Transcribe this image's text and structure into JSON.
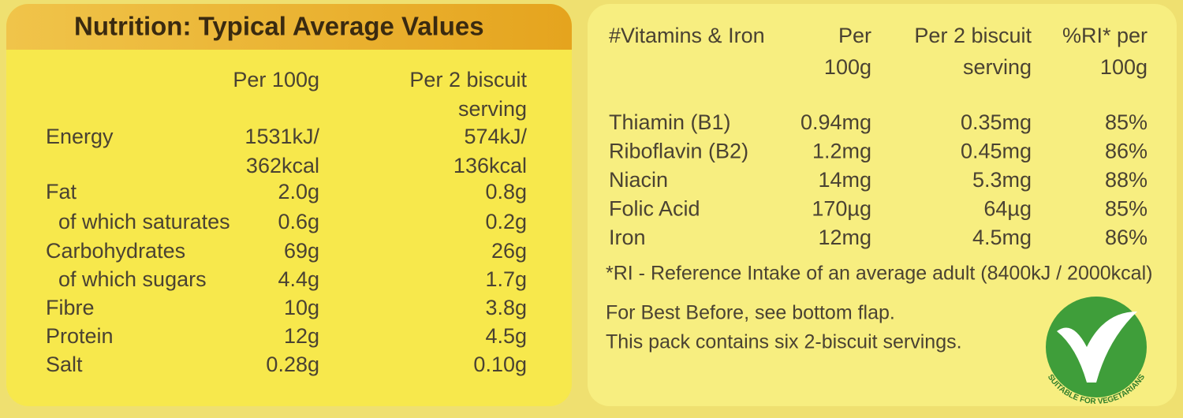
{
  "nutrition": {
    "title": "Nutrition: Typical Average Values",
    "columns": [
      "Per 100g",
      [
        "Per 2 biscuit",
        "serving"
      ]
    ],
    "rows": [
      {
        "label": "Energy",
        "per_100g": [
          "1531kJ/",
          "362kcal"
        ],
        "per_serving": [
          "574kJ/",
          "136kcal"
        ]
      },
      {
        "label": "Fat",
        "per_100g": [
          "2.0g"
        ],
        "per_serving": [
          "0.8g"
        ]
      },
      {
        "label": "of which saturates",
        "per_100g": [
          "0.6g"
        ],
        "per_serving": [
          "0.2g"
        ]
      },
      {
        "label": "Carbohydrates",
        "per_100g": [
          "69g"
        ],
        "per_serving": [
          "26g"
        ]
      },
      {
        "label": "of which sugars",
        "per_100g": [
          "4.4g"
        ],
        "per_serving": [
          "1.7g"
        ]
      },
      {
        "label": "Fibre",
        "per_100g": [
          "10g"
        ],
        "per_serving": [
          "3.8g"
        ]
      },
      {
        "label": "Protein",
        "per_100g": [
          "12g"
        ],
        "per_serving": [
          "4.5g"
        ]
      },
      {
        "label": "Salt",
        "per_100g": [
          "0.28g"
        ],
        "per_serving": [
          "0.10g"
        ]
      }
    ]
  },
  "vitamins": {
    "columns": [
      [
        "#Vitamins & Iron"
      ],
      [
        "Per",
        "100g"
      ],
      [
        "Per 2 biscuit",
        "serving"
      ],
      [
        "%RI* per",
        "100g"
      ]
    ],
    "rows": [
      [
        "Thiamin (B1)",
        "0.94mg",
        "0.35mg",
        "85%"
      ],
      [
        "Riboflavin (B2)",
        "1.2mg",
        "0.45mg",
        "86%"
      ],
      [
        "Niacin",
        "14mg",
        "5.3mg",
        "88%"
      ],
      [
        "Folic Acid",
        "170µg",
        "64µg",
        "85%"
      ],
      [
        "Iron",
        "12mg",
        "4.5mg",
        "86%"
      ]
    ],
    "footnote": "*RI - Reference Intake of an average adult (8400kJ / 2000kcal)",
    "notes": [
      "For Best Before, see bottom flap.",
      "This pack contains six 2-biscuit servings."
    ],
    "badge": "SUITABLE FOR VEGETARIANS"
  }
}
